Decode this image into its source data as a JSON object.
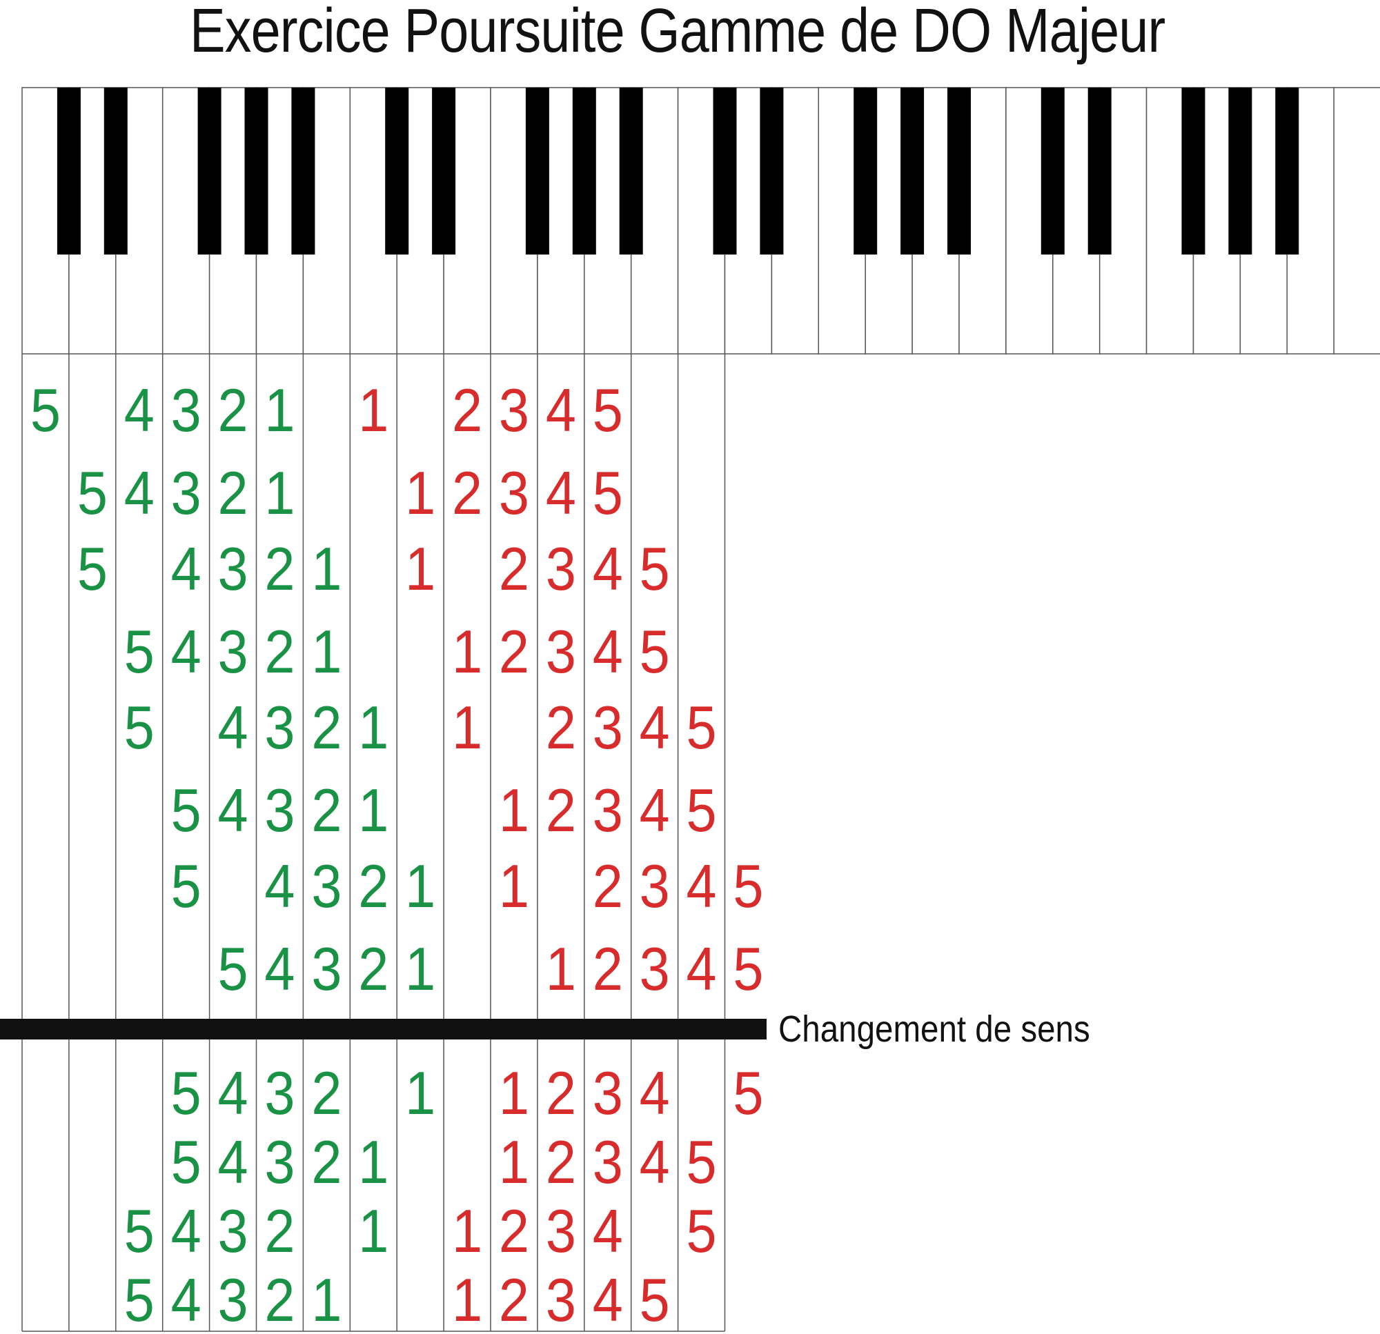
{
  "title": "Exercice Poursuite Gamme de DO Majeur",
  "annotation": "Changement de sens",
  "colors": {
    "left_hand": "#1a9245",
    "right_hand": "#d82c2c",
    "black_key": "#000000",
    "white_key": "#ffffff",
    "key_border": "#555555",
    "divider": "#111111"
  },
  "keyboard": {
    "white_key_count": 29,
    "black_keys_after_white_index": [
      0,
      1,
      3,
      4,
      5,
      7,
      8,
      10,
      11,
      12,
      14,
      15,
      17,
      18,
      19,
      21,
      22,
      24,
      25,
      26
    ]
  },
  "rows_before_change": [
    [
      {
        "k": 0,
        "f": "5",
        "h": "L"
      },
      {
        "k": 2,
        "f": "4",
        "h": "L"
      },
      {
        "k": 3,
        "f": "3",
        "h": "L"
      },
      {
        "k": 4,
        "f": "2",
        "h": "L"
      },
      {
        "k": 5,
        "f": "1",
        "h": "L"
      },
      {
        "k": 7,
        "f": "1",
        "h": "R"
      },
      {
        "k": 9,
        "f": "2",
        "h": "R"
      },
      {
        "k": 10,
        "f": "3",
        "h": "R"
      },
      {
        "k": 11,
        "f": "4",
        "h": "R"
      },
      {
        "k": 12,
        "f": "5",
        "h": "R"
      }
    ],
    [
      {
        "k": 1,
        "f": "5",
        "h": "L"
      },
      {
        "k": 2,
        "f": "4",
        "h": "L"
      },
      {
        "k": 3,
        "f": "3",
        "h": "L"
      },
      {
        "k": 4,
        "f": "2",
        "h": "L"
      },
      {
        "k": 5,
        "f": "1",
        "h": "L"
      },
      {
        "k": 8,
        "f": "1",
        "h": "R"
      },
      {
        "k": 9,
        "f": "2",
        "h": "R"
      },
      {
        "k": 10,
        "f": "3",
        "h": "R"
      },
      {
        "k": 11,
        "f": "4",
        "h": "R"
      },
      {
        "k": 12,
        "f": "5",
        "h": "R"
      }
    ],
    [
      {
        "k": 1,
        "f": "5",
        "h": "L"
      },
      {
        "k": 3,
        "f": "4",
        "h": "L"
      },
      {
        "k": 4,
        "f": "3",
        "h": "L"
      },
      {
        "k": 5,
        "f": "2",
        "h": "L"
      },
      {
        "k": 6,
        "f": "1",
        "h": "L"
      },
      {
        "k": 8,
        "f": "1",
        "h": "R"
      },
      {
        "k": 10,
        "f": "2",
        "h": "R"
      },
      {
        "k": 11,
        "f": "3",
        "h": "R"
      },
      {
        "k": 12,
        "f": "4",
        "h": "R"
      },
      {
        "k": 13,
        "f": "5",
        "h": "R"
      }
    ],
    [
      {
        "k": 2,
        "f": "5",
        "h": "L"
      },
      {
        "k": 3,
        "f": "4",
        "h": "L"
      },
      {
        "k": 4,
        "f": "3",
        "h": "L"
      },
      {
        "k": 5,
        "f": "2",
        "h": "L"
      },
      {
        "k": 6,
        "f": "1",
        "h": "L"
      },
      {
        "k": 9,
        "f": "1",
        "h": "R"
      },
      {
        "k": 10,
        "f": "2",
        "h": "R"
      },
      {
        "k": 11,
        "f": "3",
        "h": "R"
      },
      {
        "k": 12,
        "f": "4",
        "h": "R"
      },
      {
        "k": 13,
        "f": "5",
        "h": "R"
      }
    ],
    [
      {
        "k": 2,
        "f": "5",
        "h": "L"
      },
      {
        "k": 4,
        "f": "4",
        "h": "L"
      },
      {
        "k": 5,
        "f": "3",
        "h": "L"
      },
      {
        "k": 6,
        "f": "2",
        "h": "L"
      },
      {
        "k": 7,
        "f": "1",
        "h": "L"
      },
      {
        "k": 9,
        "f": "1",
        "h": "R"
      },
      {
        "k": 11,
        "f": "2",
        "h": "R"
      },
      {
        "k": 12,
        "f": "3",
        "h": "R"
      },
      {
        "k": 13,
        "f": "4",
        "h": "R"
      },
      {
        "k": 14,
        "f": "5",
        "h": "R"
      }
    ],
    [
      {
        "k": 3,
        "f": "5",
        "h": "L"
      },
      {
        "k": 4,
        "f": "4",
        "h": "L"
      },
      {
        "k": 5,
        "f": "3",
        "h": "L"
      },
      {
        "k": 6,
        "f": "2",
        "h": "L"
      },
      {
        "k": 7,
        "f": "1",
        "h": "L"
      },
      {
        "k": 10,
        "f": "1",
        "h": "R"
      },
      {
        "k": 11,
        "f": "2",
        "h": "R"
      },
      {
        "k": 12,
        "f": "3",
        "h": "R"
      },
      {
        "k": 13,
        "f": "4",
        "h": "R"
      },
      {
        "k": 14,
        "f": "5",
        "h": "R"
      }
    ],
    [
      {
        "k": 3,
        "f": "5",
        "h": "L"
      },
      {
        "k": 5,
        "f": "4",
        "h": "L"
      },
      {
        "k": 6,
        "f": "3",
        "h": "L"
      },
      {
        "k": 7,
        "f": "2",
        "h": "L"
      },
      {
        "k": 8,
        "f": "1",
        "h": "L"
      },
      {
        "k": 10,
        "f": "1",
        "h": "R"
      },
      {
        "k": 12,
        "f": "2",
        "h": "R"
      },
      {
        "k": 13,
        "f": "3",
        "h": "R"
      },
      {
        "k": 14,
        "f": "4",
        "h": "R"
      },
      {
        "k": 15,
        "f": "5",
        "h": "R"
      }
    ],
    [
      {
        "k": 4,
        "f": "5",
        "h": "L"
      },
      {
        "k": 5,
        "f": "4",
        "h": "L"
      },
      {
        "k": 6,
        "f": "3",
        "h": "L"
      },
      {
        "k": 7,
        "f": "2",
        "h": "L"
      },
      {
        "k": 8,
        "f": "1",
        "h": "L"
      },
      {
        "k": 11,
        "f": "1",
        "h": "R"
      },
      {
        "k": 12,
        "f": "2",
        "h": "R"
      },
      {
        "k": 13,
        "f": "3",
        "h": "R"
      },
      {
        "k": 14,
        "f": "4",
        "h": "R"
      },
      {
        "k": 15,
        "f": "5",
        "h": "R"
      }
    ]
  ],
  "rows_after_change": [
    [
      {
        "k": 3,
        "f": "5",
        "h": "L"
      },
      {
        "k": 4,
        "f": "4",
        "h": "L"
      },
      {
        "k": 5,
        "f": "3",
        "h": "L"
      },
      {
        "k": 6,
        "f": "2",
        "h": "L"
      },
      {
        "k": 8,
        "f": "1",
        "h": "L"
      },
      {
        "k": 10,
        "f": "1",
        "h": "R"
      },
      {
        "k": 11,
        "f": "2",
        "h": "R"
      },
      {
        "k": 12,
        "f": "3",
        "h": "R"
      },
      {
        "k": 13,
        "f": "4",
        "h": "R"
      },
      {
        "k": 15,
        "f": "5",
        "h": "R"
      }
    ],
    [
      {
        "k": 3,
        "f": "5",
        "h": "L"
      },
      {
        "k": 4,
        "f": "4",
        "h": "L"
      },
      {
        "k": 5,
        "f": "3",
        "h": "L"
      },
      {
        "k": 6,
        "f": "2",
        "h": "L"
      },
      {
        "k": 7,
        "f": "1",
        "h": "L"
      },
      {
        "k": 10,
        "f": "1",
        "h": "R"
      },
      {
        "k": 11,
        "f": "2",
        "h": "R"
      },
      {
        "k": 12,
        "f": "3",
        "h": "R"
      },
      {
        "k": 13,
        "f": "4",
        "h": "R"
      },
      {
        "k": 14,
        "f": "5",
        "h": "R"
      }
    ],
    [
      {
        "k": 2,
        "f": "5",
        "h": "L"
      },
      {
        "k": 3,
        "f": "4",
        "h": "L"
      },
      {
        "k": 4,
        "f": "3",
        "h": "L"
      },
      {
        "k": 5,
        "f": "2",
        "h": "L"
      },
      {
        "k": 7,
        "f": "1",
        "h": "L"
      },
      {
        "k": 9,
        "f": "1",
        "h": "R"
      },
      {
        "k": 10,
        "f": "2",
        "h": "R"
      },
      {
        "k": 11,
        "f": "3",
        "h": "R"
      },
      {
        "k": 12,
        "f": "4",
        "h": "R"
      },
      {
        "k": 14,
        "f": "5",
        "h": "R"
      }
    ],
    [
      {
        "k": 2,
        "f": "5",
        "h": "L"
      },
      {
        "k": 3,
        "f": "4",
        "h": "L"
      },
      {
        "k": 4,
        "f": "3",
        "h": "L"
      },
      {
        "k": 5,
        "f": "2",
        "h": "L"
      },
      {
        "k": 6,
        "f": "1",
        "h": "L"
      },
      {
        "k": 9,
        "f": "1",
        "h": "R"
      },
      {
        "k": 10,
        "f": "2",
        "h": "R"
      },
      {
        "k": 11,
        "f": "3",
        "h": "R"
      },
      {
        "k": 12,
        "f": "4",
        "h": "R"
      },
      {
        "k": 13,
        "f": "5",
        "h": "R"
      }
    ]
  ]
}
